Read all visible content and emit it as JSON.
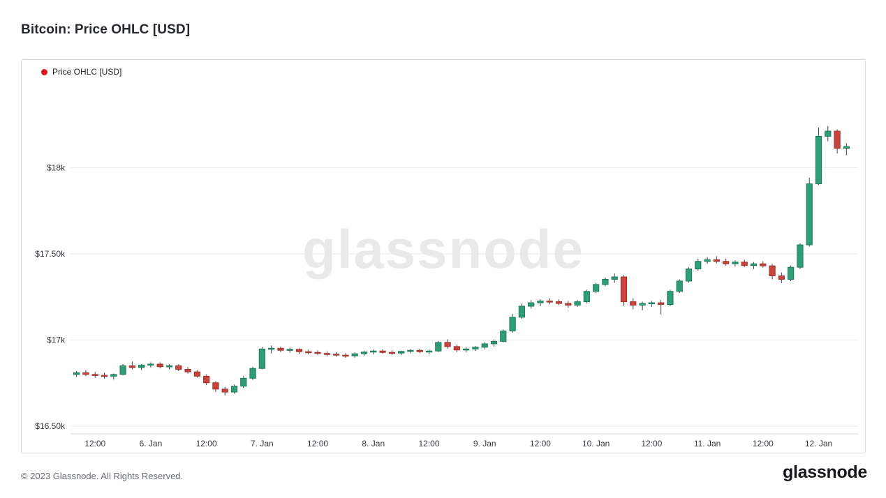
{
  "page": {
    "title": "Bitcoin: Price OHLC [USD]",
    "watermark": "glassnode",
    "footer_copyright": "© 2023 Glassnode. All Rights Reserved.",
    "brand_logo": "glassnode"
  },
  "legend": {
    "label": "Price OHLC [USD]",
    "marker_color": "#e0161f"
  },
  "chart_data": {
    "type": "candlestick",
    "title": "Bitcoin: Price OHLC [USD]",
    "unit": "USD",
    "grid": true,
    "legend_entry": "Price OHLC [USD]",
    "legend_position": "top-left",
    "y_ticks": [
      "$18k",
      "$17.50k",
      "$17k",
      "$16.50k"
    ],
    "y_tick_values": [
      18000,
      17500,
      17000,
      16500
    ],
    "ylim": [
      16500,
      18220
    ],
    "x_axis_labels": [
      {
        "label": "12:00",
        "index": 2
      },
      {
        "label": "6. Jan",
        "index": 8
      },
      {
        "label": "12:00",
        "index": 14
      },
      {
        "label": "7. Jan",
        "index": 20
      },
      {
        "label": "12:00",
        "index": 26
      },
      {
        "label": "8. Jan",
        "index": 32
      },
      {
        "label": "12:00",
        "index": 38
      },
      {
        "label": "9. Jan",
        "index": 44
      },
      {
        "label": "12:00",
        "index": 50
      },
      {
        "label": "10. Jan",
        "index": 56
      },
      {
        "label": "12:00",
        "index": 62
      },
      {
        "label": "11. Jan",
        "index": 68
      },
      {
        "label": "12:00",
        "index": 74
      },
      {
        "label": "12. Jan",
        "index": 80
      }
    ],
    "colors": {
      "up": "#2f9e77",
      "up_border": "#1d7a58",
      "down": "#c8433c",
      "down_border": "#9e332d",
      "wick": "#3c444b",
      "grid": "#e8e8e8",
      "axis_line": "#d2d5d8"
    },
    "ohlc_format": [
      "time",
      "open",
      "high",
      "low",
      "close"
    ],
    "ohlc": [
      [
        "05 Jan 08:00",
        16800,
        16820,
        16785,
        16810
      ],
      [
        "05 Jan 10:00",
        16810,
        16825,
        16790,
        16800
      ],
      [
        "05 Jan 12:00",
        16800,
        16815,
        16780,
        16795
      ],
      [
        "05 Jan 14:00",
        16795,
        16810,
        16775,
        16790
      ],
      [
        "05 Jan 16:00",
        16790,
        16805,
        16770,
        16800
      ],
      [
        "05 Jan 18:00",
        16800,
        16860,
        16795,
        16850
      ],
      [
        "05 Jan 20:00",
        16850,
        16875,
        16830,
        16840
      ],
      [
        "05 Jan 22:00",
        16840,
        16860,
        16825,
        16855
      ],
      [
        "06 Jan 00:00",
        16855,
        16870,
        16840,
        16860
      ],
      [
        "06 Jan 02:00",
        16860,
        16870,
        16835,
        16845
      ],
      [
        "06 Jan 04:00",
        16845,
        16860,
        16830,
        16850
      ],
      [
        "06 Jan 06:00",
        16850,
        16858,
        16820,
        16830
      ],
      [
        "06 Jan 08:00",
        16830,
        16842,
        16805,
        16815
      ],
      [
        "06 Jan 10:00",
        16815,
        16825,
        16782,
        16790
      ],
      [
        "06 Jan 12:00",
        16790,
        16800,
        16738,
        16752
      ],
      [
        "06 Jan 14:00",
        16752,
        16762,
        16698,
        16715
      ],
      [
        "06 Jan 16:00",
        16715,
        16728,
        16678,
        16698
      ],
      [
        "06 Jan 18:00",
        16698,
        16742,
        16688,
        16732
      ],
      [
        "06 Jan 20:00",
        16732,
        16790,
        16722,
        16778
      ],
      [
        "06 Jan 22:00",
        16778,
        16845,
        16768,
        16835
      ],
      [
        "07 Jan 00:00",
        16835,
        16960,
        16830,
        16948
      ],
      [
        "07 Jan 02:00",
        16948,
        16968,
        16922,
        16952
      ],
      [
        "07 Jan 04:00",
        16952,
        16962,
        16930,
        16940
      ],
      [
        "07 Jan 06:00",
        16940,
        16955,
        16926,
        16946
      ],
      [
        "07 Jan 08:00",
        16946,
        16952,
        16920,
        16932
      ],
      [
        "07 Jan 10:00",
        16932,
        16945,
        16916,
        16928
      ],
      [
        "07 Jan 12:00",
        16928,
        16940,
        16912,
        16922
      ],
      [
        "07 Jan 14:00",
        16922,
        16934,
        16906,
        16918
      ],
      [
        "07 Jan 16:00",
        16918,
        16930,
        16902,
        16912
      ],
      [
        "07 Jan 18:00",
        16912,
        16924,
        16896,
        16908
      ],
      [
        "07 Jan 20:00",
        16908,
        16928,
        16898,
        16920
      ],
      [
        "07 Jan 22:00",
        16920,
        16936,
        16910,
        16930
      ],
      [
        "08 Jan 00:00",
        16930,
        16944,
        16916,
        16936
      ],
      [
        "08 Jan 02:00",
        16936,
        16946,
        16920,
        16928
      ],
      [
        "08 Jan 04:00",
        16928,
        16940,
        16914,
        16924
      ],
      [
        "08 Jan 06:00",
        16924,
        16938,
        16912,
        16934
      ],
      [
        "08 Jan 08:00",
        16934,
        16948,
        16922,
        16940
      ],
      [
        "08 Jan 10:00",
        16940,
        16950,
        16924,
        16932
      ],
      [
        "08 Jan 12:00",
        16932,
        16944,
        16918,
        16936
      ],
      [
        "08 Jan 14:00",
        16936,
        16994,
        16930,
        16986
      ],
      [
        "08 Jan 16:00",
        16986,
        17004,
        16950,
        16962
      ],
      [
        "08 Jan 18:00",
        16962,
        16974,
        16930,
        16942
      ],
      [
        "08 Jan 20:00",
        16942,
        16958,
        16928,
        16948
      ],
      [
        "08 Jan 22:00",
        16948,
        16966,
        16936,
        16958
      ],
      [
        "09 Jan 00:00",
        16958,
        16988,
        16946,
        16978
      ],
      [
        "09 Jan 02:00",
        16978,
        17002,
        16962,
        16992
      ],
      [
        "09 Jan 04:00",
        16992,
        17062,
        16986,
        17052
      ],
      [
        "09 Jan 06:00",
        17052,
        17152,
        17042,
        17132
      ],
      [
        "09 Jan 08:00",
        17132,
        17212,
        17122,
        17196
      ],
      [
        "09 Jan 10:00",
        17196,
        17232,
        17182,
        17216
      ],
      [
        "09 Jan 12:00",
        17216,
        17236,
        17196,
        17226
      ],
      [
        "09 Jan 14:00",
        17226,
        17242,
        17206,
        17222
      ],
      [
        "09 Jan 16:00",
        17222,
        17236,
        17202,
        17212
      ],
      [
        "09 Jan 18:00",
        17212,
        17226,
        17186,
        17202
      ],
      [
        "09 Jan 20:00",
        17202,
        17232,
        17192,
        17222
      ],
      [
        "09 Jan 22:00",
        17222,
        17292,
        17212,
        17282
      ],
      [
        "10 Jan 00:00",
        17282,
        17332,
        17272,
        17322
      ],
      [
        "10 Jan 02:00",
        17322,
        17362,
        17312,
        17352
      ],
      [
        "10 Jan 04:00",
        17352,
        17386,
        17332,
        17366
      ],
      [
        "10 Jan 06:00",
        17366,
        17376,
        17198,
        17222
      ],
      [
        "10 Jan 08:00",
        17222,
        17242,
        17178,
        17202
      ],
      [
        "10 Jan 10:00",
        17202,
        17222,
        17172,
        17212
      ],
      [
        "10 Jan 12:00",
        17212,
        17226,
        17192,
        17216
      ],
      [
        "10 Jan 14:00",
        17216,
        17232,
        17148,
        17206
      ],
      [
        "10 Jan 16:00",
        17206,
        17292,
        17196,
        17282
      ],
      [
        "10 Jan 18:00",
        17282,
        17352,
        17272,
        17342
      ],
      [
        "10 Jan 20:00",
        17342,
        17422,
        17332,
        17412
      ],
      [
        "10 Jan 22:00",
        17412,
        17472,
        17402,
        17456
      ],
      [
        "11 Jan 00:00",
        17456,
        17482,
        17442,
        17466
      ],
      [
        "11 Jan 02:00",
        17466,
        17486,
        17446,
        17456
      ],
      [
        "11 Jan 04:00",
        17456,
        17472,
        17432,
        17442
      ],
      [
        "11 Jan 06:00",
        17442,
        17462,
        17426,
        17452
      ],
      [
        "11 Jan 08:00",
        17452,
        17466,
        17422,
        17432
      ],
      [
        "11 Jan 10:00",
        17432,
        17452,
        17412,
        17442
      ],
      [
        "11 Jan 12:00",
        17442,
        17456,
        17420,
        17430
      ],
      [
        "11 Jan 14:00",
        17430,
        17442,
        17352,
        17372
      ],
      [
        "11 Jan 16:00",
        17372,
        17392,
        17330,
        17352
      ],
      [
        "11 Jan 18:00",
        17352,
        17432,
        17342,
        17422
      ],
      [
        "11 Jan 20:00",
        17422,
        17562,
        17412,
        17552
      ],
      [
        "11 Jan 22:00",
        17552,
        17942,
        17542,
        17906
      ],
      [
        "12 Jan 00:00",
        17906,
        18232,
        17900,
        18182
      ],
      [
        "12 Jan 02:00",
        18182,
        18242,
        18152,
        18212
      ],
      [
        "12 Jan 04:00",
        18212,
        18222,
        18082,
        18112
      ],
      [
        "12 Jan 06:00",
        18112,
        18142,
        18072,
        18122
      ]
    ]
  }
}
